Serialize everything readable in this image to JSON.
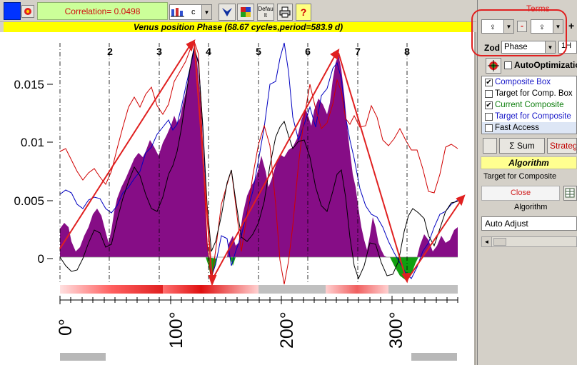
{
  "toolbar": {
    "correlation_text": "Correlation= 0.0498",
    "chart_type_label": "c",
    "default_label": "Default",
    "help_label": "?"
  },
  "chart": {
    "title": "Venus position  Phase  (68.67 cycles,period=583.9 d)",
    "y_ticks": [
      "0.015",
      "0.01",
      "0.005",
      "0"
    ],
    "x_ticks": [
      "0°",
      "100°",
      "200°",
      "300°"
    ],
    "segment_labels": [
      "2",
      "3",
      "4",
      "5",
      "6",
      "7",
      "8"
    ]
  },
  "right_panel": {
    "terms_label": "Terms",
    "planet1_symbol": "♀",
    "minus_label": "-",
    "planet2_symbol": "♀",
    "plus_label": "+",
    "zod_label": "Zod",
    "zod_value": "Phase",
    "zod_extra": "1H",
    "auto_optimization_label": "AutoOptimization",
    "list_items": [
      {
        "label": "Composite Box",
        "checked": true,
        "color": "#1818c8"
      },
      {
        "label": "Target for Comp. Box",
        "checked": false,
        "color": "#000000"
      },
      {
        "label": "Current Composite",
        "checked": true,
        "color": "#108010"
      },
      {
        "label": "Target for Composite",
        "checked": false,
        "color": "#1818c8"
      },
      {
        "label": "Fast Access",
        "checked": false,
        "color": "#000000"
      }
    ],
    "sum_label": "Σ Sum",
    "strategy_label": "Strateg",
    "algorithm_header": "Algorithm",
    "target_for_composite_label": "Target for Composite",
    "close_label": "Close",
    "algorithm_label": "Algorithm",
    "algorithm_value": "Auto Adjust"
  },
  "colors": {
    "fill_positive": "#800080",
    "fill_negative": "#10a010",
    "line_blue": "#0000c0",
    "line_red": "#d00000",
    "line_black": "#000000",
    "arrow": "#e02020",
    "highlight_circle": "#e02020"
  }
}
